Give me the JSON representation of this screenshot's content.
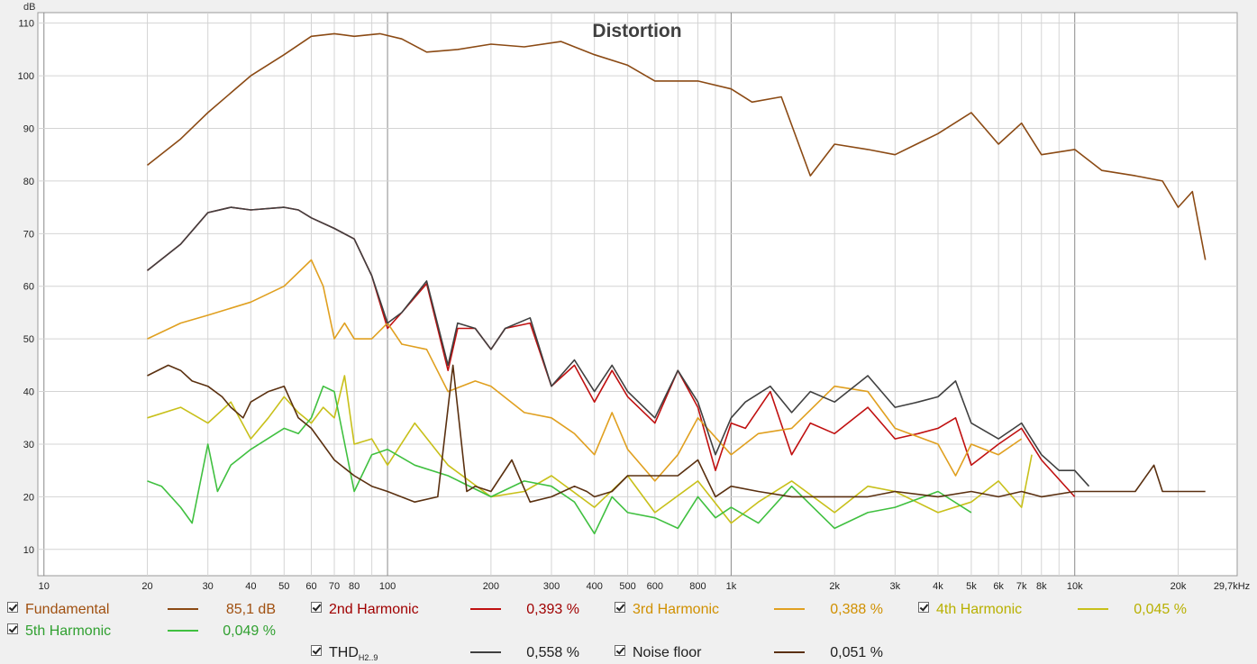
{
  "chart_data": {
    "type": "line",
    "title": "Distortion",
    "ylabel": "dB",
    "xlabel": "",
    "x_scale": "log",
    "xlim": [
      9.6,
      29700
    ],
    "ylim": [
      5,
      112
    ],
    "grid": true,
    "x_ticks": [
      10,
      20,
      30,
      40,
      50,
      60,
      70,
      80,
      100,
      200,
      300,
      400,
      500,
      600,
      800,
      1000,
      2000,
      3000,
      4000,
      5000,
      6000,
      7000,
      8000,
      10000,
      20000
    ],
    "x_tick_labels": [
      "10",
      "20",
      "30",
      "40",
      "50",
      "60",
      "70",
      "80",
      "100",
      "200",
      "300",
      "400",
      "500",
      "600",
      "800",
      "1k",
      "2k",
      "3k",
      "4k",
      "5k",
      "6k",
      "7k",
      "8k",
      "10k",
      "20k"
    ],
    "x_end_label": "29,7kHz",
    "y_ticks": [
      10,
      20,
      30,
      40,
      50,
      60,
      70,
      80,
      90,
      100,
      110
    ],
    "y_tick_labels": [
      "10",
      "20",
      "30",
      "40",
      "50",
      "60",
      "70",
      "80",
      "90",
      "100",
      "110"
    ],
    "series": [
      {
        "name": "Fundamental",
        "color": "#8b4a14",
        "x": [
          20,
          25,
          30,
          40,
          50,
          60,
          70,
          80,
          95,
          110,
          130,
          160,
          200,
          250,
          320,
          400,
          500,
          600,
          800,
          1000,
          1150,
          1400,
          1700,
          2000,
          2500,
          3000,
          4000,
          5000,
          6000,
          7000,
          8000,
          10000,
          12000,
          15000,
          18000,
          20000,
          22000,
          24000
        ],
        "y": [
          83,
          88,
          93,
          100,
          104,
          107.5,
          108,
          107.5,
          108,
          107,
          104.5,
          105,
          106,
          105.5,
          106.5,
          104,
          102,
          99,
          99,
          97.5,
          95,
          96,
          81,
          87,
          86,
          85,
          89,
          93,
          87,
          91,
          85,
          86,
          82,
          81,
          80,
          75,
          78,
          65
        ]
      },
      {
        "name": "2nd Harmonic",
        "color": "#c01010",
        "x": [
          20,
          25,
          30,
          35,
          40,
          50,
          55,
          60,
          70,
          80,
          90,
          100,
          110,
          130,
          150,
          160,
          180,
          200,
          220,
          260,
          300,
          350,
          400,
          450,
          500,
          600,
          700,
          800,
          900,
          1000,
          1100,
          1300,
          1500,
          1700,
          2000,
          2500,
          3000,
          3500,
          4000,
          4500,
          5000,
          6000,
          7000,
          8000,
          10000
        ],
        "y": [
          63,
          68,
          74,
          75,
          74.5,
          75,
          74.5,
          73,
          71,
          69,
          62,
          52,
          55,
          60.5,
          44,
          52,
          52,
          48,
          52,
          53,
          41,
          45,
          38,
          44,
          39,
          34,
          44,
          37,
          25,
          34,
          33,
          40,
          28,
          34,
          32,
          37,
          31,
          32,
          33,
          35,
          26,
          30,
          33,
          27,
          20
        ]
      },
      {
        "name": "3rd Harmonic",
        "color": "#e0a020",
        "x": [
          20,
          25,
          30,
          40,
          50,
          60,
          65,
          70,
          75,
          80,
          90,
          100,
          110,
          130,
          150,
          180,
          200,
          250,
          300,
          350,
          400,
          450,
          500,
          600,
          700,
          800,
          1000,
          1200,
          1500,
          2000,
          2500,
          3000,
          4000,
          4500,
          5000,
          6000,
          7000
        ],
        "y": [
          50,
          53,
          54.5,
          57,
          60,
          65,
          60,
          50,
          53,
          50,
          50,
          53,
          49,
          48,
          40,
          42,
          41,
          36,
          35,
          32,
          28,
          36,
          29,
          23,
          28,
          35,
          28,
          32,
          33,
          41,
          40,
          33,
          30,
          24,
          30,
          28,
          31
        ]
      },
      {
        "name": "4th Harmonic",
        "color": "#c8c01a",
        "x": [
          20,
          25,
          30,
          35,
          40,
          45,
          50,
          55,
          60,
          65,
          70,
          75,
          80,
          90,
          100,
          120,
          150,
          200,
          250,
          300,
          400,
          500,
          600,
          800,
          1000,
          1200,
          1500,
          2000,
          2500,
          3000,
          4000,
          5000,
          6000,
          7000,
          7500
        ],
        "y": [
          35,
          37,
          34,
          38,
          31,
          35,
          39,
          36,
          34,
          37,
          35,
          43,
          30,
          31,
          26,
          34,
          26,
          20,
          21,
          24,
          18,
          24,
          17,
          23,
          15,
          19,
          23,
          17,
          22,
          21,
          17,
          19,
          23,
          18,
          28
        ]
      },
      {
        "name": "5th Harmonic",
        "color": "#40c040",
        "x": [
          20,
          22,
          25,
          27,
          30,
          32,
          35,
          40,
          50,
          55,
          60,
          65,
          70,
          80,
          90,
          100,
          120,
          150,
          200,
          250,
          300,
          350,
          400,
          450,
          500,
          600,
          700,
          800,
          900,
          1000,
          1200,
          1500,
          2000,
          2500,
          3000,
          4000,
          5000
        ],
        "y": [
          23,
          22,
          18,
          15,
          30,
          21,
          26,
          29,
          33,
          32,
          35,
          41,
          40,
          21,
          28,
          29,
          26,
          24,
          20,
          23,
          22,
          19,
          13,
          20,
          17,
          16,
          14,
          20,
          16,
          18,
          15,
          22,
          14,
          17,
          18,
          21,
          17
        ]
      },
      {
        "name": "THD",
        "color": "#404040",
        "x": [
          20,
          25,
          30,
          35,
          40,
          50,
          55,
          60,
          70,
          80,
          90,
          100,
          110,
          130,
          150,
          160,
          180,
          200,
          220,
          260,
          300,
          350,
          400,
          450,
          500,
          600,
          700,
          800,
          900,
          1000,
          1100,
          1300,
          1500,
          1700,
          2000,
          2500,
          3000,
          3500,
          4000,
          4500,
          5000,
          6000,
          7000,
          8000,
          9000,
          10000,
          11000
        ],
        "y": [
          63,
          68,
          74,
          75,
          74.5,
          75,
          74.5,
          73,
          71,
          69,
          62,
          53,
          55,
          61,
          45,
          53,
          52,
          48,
          52,
          54,
          41,
          46,
          40,
          45,
          40,
          35,
          44,
          38,
          28,
          35,
          38,
          41,
          36,
          40,
          38,
          43,
          37,
          38,
          39,
          42,
          34,
          31,
          34,
          28,
          25,
          25,
          22
        ]
      },
      {
        "name": "Noise floor",
        "color": "#5a3010",
        "x": [
          20,
          23,
          25,
          27,
          30,
          33,
          35,
          38,
          40,
          45,
          50,
          55,
          60,
          70,
          80,
          90,
          100,
          120,
          140,
          155,
          170,
          180,
          200,
          230,
          260,
          300,
          350,
          380,
          400,
          450,
          500,
          600,
          700,
          800,
          900,
          1000,
          1200,
          1500,
          2000,
          2500,
          3000,
          4000,
          5000,
          6000,
          7000,
          8000,
          10000,
          12000,
          15000,
          17000,
          18000,
          20000,
          24000
        ],
        "y": [
          43,
          45,
          44,
          42,
          41,
          39,
          37,
          35,
          38,
          40,
          41,
          35,
          33,
          27,
          24,
          22,
          21,
          19,
          20,
          45,
          21,
          22,
          21,
          27,
          19,
          20,
          22,
          21,
          20,
          21,
          24,
          24,
          24,
          27,
          20,
          22,
          21,
          20,
          20,
          20,
          21,
          20,
          21,
          20,
          21,
          20,
          21,
          21,
          21,
          26,
          21,
          21,
          21
        ]
      }
    ]
  },
  "legend": {
    "items": [
      {
        "label": "Fundamental",
        "value": "85,1 dB",
        "text_color": "#a05010"
      },
      {
        "label": "2nd Harmonic",
        "value": "0,393 %",
        "text_color": "#a00000"
      },
      {
        "label": "3rd Harmonic",
        "value": "0,388 %",
        "text_color": "#d09000"
      },
      {
        "label": "4th Harmonic",
        "value": "0,045 %",
        "text_color": "#b8b000"
      },
      {
        "label": "5th Harmonic",
        "value": "0,049 %",
        "text_color": "#30a030"
      },
      {
        "label": "THD",
        "sub": "H2..9",
        "value": "0,558 %",
        "text_color": "#202020"
      },
      {
        "label": "Noise floor",
        "value": "0,051 %",
        "text_color": "#202020"
      }
    ]
  }
}
